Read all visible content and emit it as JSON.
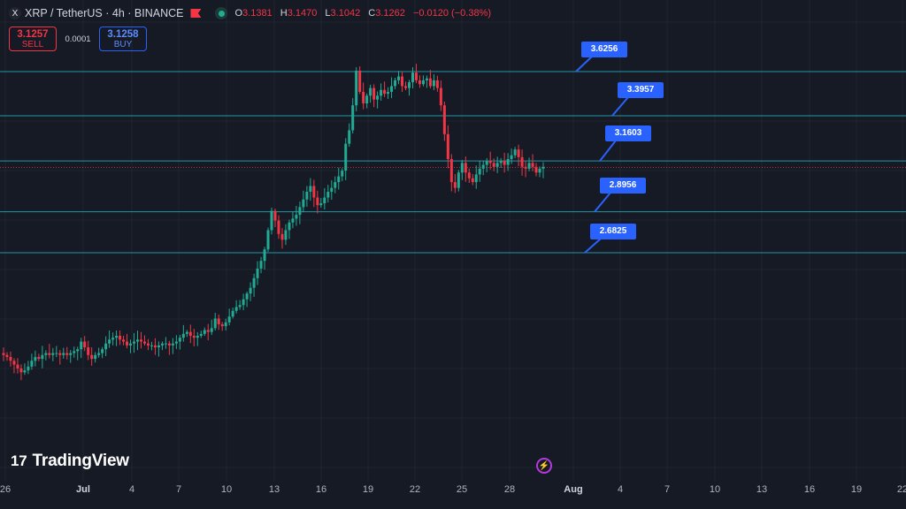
{
  "header": {
    "symbol": "XRP / TetherUS · 4h · BINANCE",
    "logo": "X",
    "ohlc": {
      "o_label": "O",
      "o": "3.1381",
      "h_label": "H",
      "h": "3.1470",
      "l_label": "L",
      "l": "3.1042",
      "c_label": "C",
      "c": "3.1262",
      "change": "−0.0120 (−0.38%)"
    }
  },
  "trade": {
    "sell_price": "3.1257",
    "sell_label": "SELL",
    "spread": "0.0001",
    "buy_price": "3.1258",
    "buy_label": "BUY"
  },
  "brand": {
    "name": "TradingView",
    "mark": "17"
  },
  "colors": {
    "bg": "#161a25",
    "up": "#22ab94",
    "down": "#f23645",
    "hline": "#2196a6",
    "label": "#2962ff"
  },
  "chart_data": {
    "type": "candlestick",
    "title": "",
    "x_ticks": [
      "26",
      "Jul",
      "4",
      "7",
      "10",
      "13",
      "16",
      "19",
      "22",
      "25",
      "28",
      "Aug",
      "4",
      "7",
      "10",
      "13",
      "16",
      "19",
      "22"
    ],
    "horizontal_levels": [
      3.6256,
      3.3957,
      3.1603,
      2.8956,
      2.6825
    ],
    "last_price_line": 3.1262,
    "closes": [
      2.15,
      2.14,
      2.12,
      2.1,
      2.08,
      2.06,
      2.07,
      2.09,
      2.12,
      2.14,
      2.13,
      2.15,
      2.16,
      2.15,
      2.16,
      2.16,
      2.15,
      2.16,
      2.15,
      2.16,
      2.17,
      2.18,
      2.22,
      2.19,
      2.15,
      2.13,
      2.15,
      2.16,
      2.18,
      2.21,
      2.23,
      2.24,
      2.25,
      2.23,
      2.22,
      2.2,
      2.21,
      2.22,
      2.23,
      2.22,
      2.21,
      2.2,
      2.2,
      2.19,
      2.2,
      2.21,
      2.21,
      2.2,
      2.21,
      2.22,
      2.24,
      2.26,
      2.27,
      2.25,
      2.24,
      2.25,
      2.26,
      2.28,
      2.27,
      2.29,
      2.34,
      2.31,
      2.3,
      2.32,
      2.35,
      2.38,
      2.4,
      2.41,
      2.44,
      2.47,
      2.5,
      2.55,
      2.6,
      2.64,
      2.7,
      2.8,
      2.9,
      2.85,
      2.78,
      2.75,
      2.8,
      2.84,
      2.86,
      2.88,
      2.92,
      2.96,
      3.0,
      3.03,
      2.97,
      2.93,
      2.94,
      2.97,
      3.0,
      3.02,
      3.05,
      3.08,
      3.11,
      3.25,
      3.32,
      3.45,
      3.63,
      3.52,
      3.46,
      3.5,
      3.54,
      3.48,
      3.5,
      3.53,
      3.51,
      3.52,
      3.55,
      3.58,
      3.6,
      3.55,
      3.54,
      3.57,
      3.62,
      3.58,
      3.56,
      3.58,
      3.59,
      3.55,
      3.58,
      3.54,
      3.45,
      3.3,
      3.17,
      3.05,
      3.02,
      3.1,
      3.15,
      3.1,
      3.07,
      3.05,
      3.09,
      3.12,
      3.14,
      3.16,
      3.15,
      3.13,
      3.15,
      3.16,
      3.14,
      3.17,
      3.19,
      3.22,
      3.18,
      3.13,
      3.12,
      3.15,
      3.13,
      3.1,
      3.12,
      3.13
    ]
  }
}
